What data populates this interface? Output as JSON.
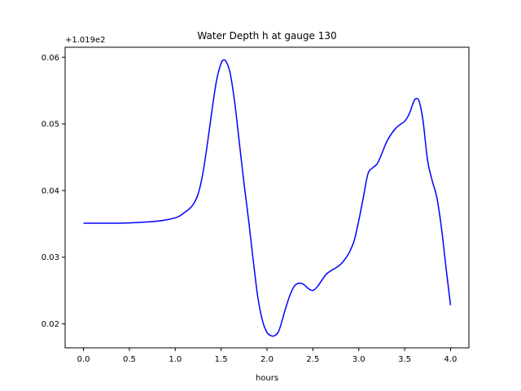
{
  "chart_data": {
    "type": "line",
    "title": "Water Depth h at gauge 130",
    "xlabel": "hours",
    "ylabel": "",
    "y_offset_label": "+1.019e2",
    "xlim": [
      -0.2,
      4.2
    ],
    "ylim": [
      0.0164,
      0.0615
    ],
    "x_ticks": [
      0.0,
      0.5,
      1.0,
      1.5,
      2.0,
      2.5,
      3.0,
      3.5,
      4.0
    ],
    "x_tick_labels": [
      "0.0",
      "0.5",
      "1.0",
      "1.5",
      "2.0",
      "2.5",
      "3.0",
      "3.5",
      "4.0"
    ],
    "y_ticks": [
      0.02,
      0.03,
      0.04,
      0.05,
      0.06
    ],
    "y_tick_labels": [
      "0.02",
      "0.03",
      "0.04",
      "0.05",
      "0.06"
    ],
    "grid": false,
    "series": [
      {
        "color": "#0000ff",
        "x": [
          0.0,
          0.2,
          0.4,
          0.6,
          0.8,
          0.9,
          1.0,
          1.05,
          1.1,
          1.15,
          1.2,
          1.25,
          1.3,
          1.35,
          1.4,
          1.45,
          1.5,
          1.53,
          1.56,
          1.6,
          1.65,
          1.7,
          1.75,
          1.8,
          1.85,
          1.9,
          1.95,
          2.0,
          2.05,
          2.08,
          2.12,
          2.15,
          2.2,
          2.25,
          2.3,
          2.35,
          2.4,
          2.45,
          2.5,
          2.55,
          2.6,
          2.65,
          2.7,
          2.75,
          2.8,
          2.85,
          2.9,
          2.95,
          3.0,
          3.05,
          3.1,
          3.15,
          3.2,
          3.25,
          3.3,
          3.35,
          3.4,
          3.45,
          3.5,
          3.55,
          3.6,
          3.63,
          3.66,
          3.7,
          3.75,
          3.8,
          3.85,
          3.9,
          3.95,
          4.0
        ],
        "y": [
          0.0351,
          0.0351,
          0.0351,
          0.0352,
          0.0354,
          0.0356,
          0.0359,
          0.0362,
          0.0367,
          0.0372,
          0.038,
          0.0395,
          0.0425,
          0.047,
          0.052,
          0.0565,
          0.0591,
          0.0596,
          0.0592,
          0.0575,
          0.053,
          0.047,
          0.041,
          0.0355,
          0.0295,
          0.024,
          0.0205,
          0.0187,
          0.0182,
          0.0182,
          0.0187,
          0.0198,
          0.0222,
          0.0243,
          0.0257,
          0.0261,
          0.0259,
          0.0253,
          0.025,
          0.0256,
          0.0266,
          0.0275,
          0.028,
          0.0284,
          0.0289,
          0.0297,
          0.0308,
          0.0325,
          0.0355,
          0.039,
          0.0425,
          0.0434,
          0.044,
          0.0455,
          0.0472,
          0.0484,
          0.0493,
          0.0499,
          0.0504,
          0.0515,
          0.0534,
          0.0538,
          0.0533,
          0.0505,
          0.0445,
          0.0415,
          0.039,
          0.0345,
          0.0285,
          0.0228
        ]
      }
    ]
  }
}
